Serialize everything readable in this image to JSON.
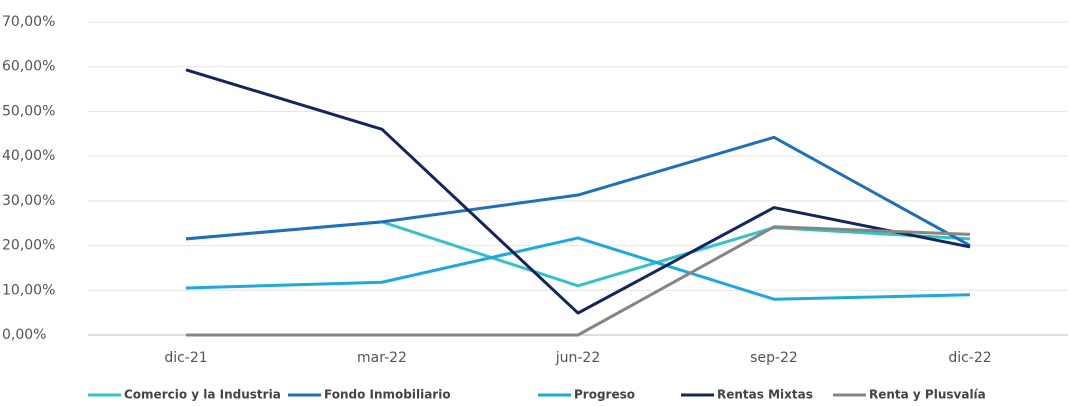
{
  "chart_data": {
    "type": "line",
    "categories": [
      "dic-21",
      "mar-22",
      "jun-22",
      "sep-22",
      "dic-22"
    ],
    "series": [
      {
        "name": "Comercio y la Industria",
        "color": "#33c3c6",
        "values": [
          21.5,
          25.3,
          11,
          24,
          21.5
        ]
      },
      {
        "name": "Fondo Inmobiliario",
        "color": "#1f6fbb",
        "values": [
          21.5,
          25.3,
          31.3,
          44.2,
          20
        ]
      },
      {
        "name": "Progreso",
        "color": "#1ea8e0",
        "values": [
          10.5,
          11.8,
          21.7,
          8,
          9
        ]
      },
      {
        "name": "Rentas Mixtas",
        "color": "#14255e",
        "values": [
          59.3,
          46,
          4.9,
          28.5,
          19.7
        ]
      },
      {
        "name": "Renta y Plusvalía",
        "color": "#858585",
        "values": [
          0,
          0,
          0,
          24.2,
          22.5
        ]
      }
    ],
    "ylim": [
      0,
      70
    ],
    "yticks": [
      {
        "value": 0,
        "label": "0,00%"
      },
      {
        "value": 10,
        "label": "10,00%"
      },
      {
        "value": 20,
        "label": "20,00%"
      },
      {
        "value": 30,
        "label": "30,00%"
      },
      {
        "value": 40,
        "label": "40,00%"
      },
      {
        "value": 50,
        "label": "50,00%"
      },
      {
        "value": 60,
        "label": "60,00%"
      },
      {
        "value": 70,
        "label": "70,00%"
      }
    ],
    "grid": true,
    "legend": "bottom"
  }
}
